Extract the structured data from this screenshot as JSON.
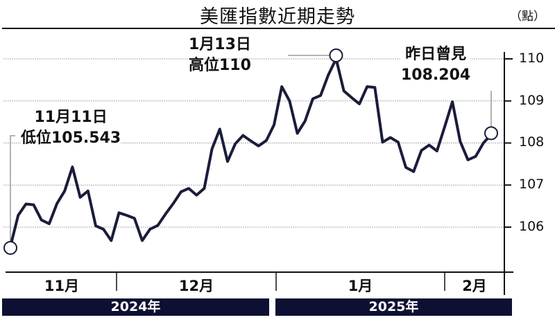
{
  "header": {
    "title": "美匯指數近期走勢",
    "unit": "（點）"
  },
  "annotations": {
    "low": {
      "line1": "11月11日",
      "line2": "低位105.543"
    },
    "high": {
      "line1": "1月13日",
      "line2": "高位110"
    },
    "latest": {
      "line1": "昨日曾見",
      "line2": "108.204"
    }
  },
  "axis": {
    "y_ticks": [
      "110",
      "109",
      "108",
      "107",
      "106"
    ],
    "months": [
      "11月",
      "12月",
      "1月",
      "2月"
    ],
    "years": [
      "2024年",
      "2025年"
    ]
  },
  "colors": {
    "line": "#1a1c3a",
    "year_bar": "#0e1033",
    "grid": "#9a9a9a"
  },
  "chart_data": {
    "type": "line",
    "title": "美匯指數近期走勢",
    "xlabel": "",
    "ylabel": "（點）",
    "ylim": [
      105.0,
      110.3
    ],
    "y_ticks": [
      106,
      107,
      108,
      109,
      110
    ],
    "grid": true,
    "legend": null,
    "x_groups": [
      {
        "year": "2024年",
        "months": [
          "11月",
          "12月"
        ]
      },
      {
        "year": "2025年",
        "months": [
          "1月",
          "2月"
        ]
      }
    ],
    "annotations": [
      {
        "label": "11月11日 低位105.543",
        "value": 105.543
      },
      {
        "label": "1月13日 高位110",
        "value": 110.0
      },
      {
        "label": "昨日曾見 108.204",
        "value": 108.204
      }
    ],
    "series": [
      {
        "name": "美匯指數",
        "values": [
          105.54,
          106.28,
          106.55,
          106.53,
          106.17,
          106.08,
          106.56,
          106.86,
          107.43,
          106.71,
          106.86,
          106.03,
          105.95,
          105.68,
          106.34,
          106.28,
          106.21,
          105.68,
          105.95,
          106.04,
          106.31,
          106.56,
          106.84,
          106.92,
          106.76,
          106.92,
          107.86,
          108.33,
          107.56,
          107.98,
          108.18,
          108.05,
          107.93,
          108.06,
          108.43,
          109.34,
          109.0,
          108.23,
          108.52,
          109.05,
          109.13,
          109.62,
          110.0,
          109.24,
          109.08,
          108.93,
          109.34,
          109.32,
          108.02,
          108.13,
          108.02,
          107.42,
          107.32,
          107.82,
          107.95,
          107.81,
          108.38,
          108.98,
          108.04,
          107.6,
          107.68,
          108.0,
          108.2
        ]
      }
    ]
  }
}
